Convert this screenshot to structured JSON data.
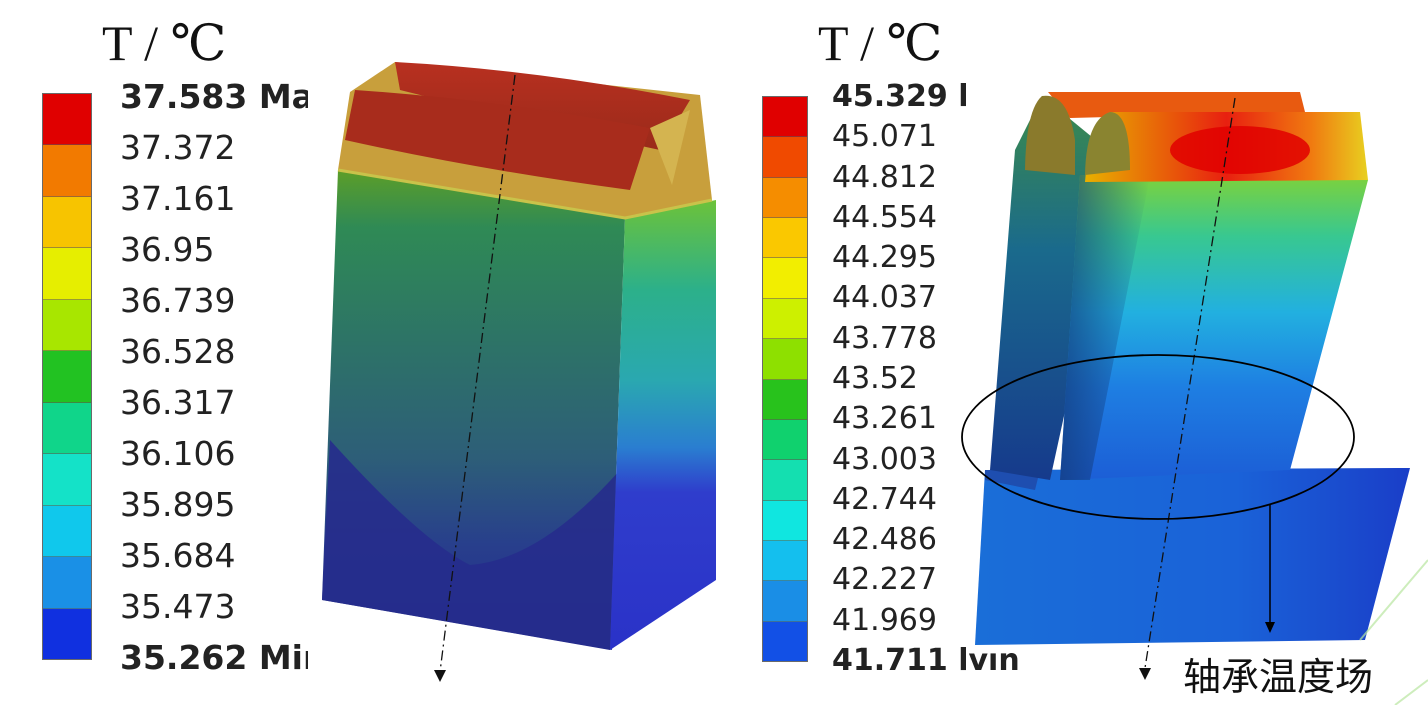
{
  "panels": [
    {
      "unit_label": "T / ℃",
      "legend_labels": [
        "37.583 Ma",
        "37.372",
        "37.161",
        "36.95",
        "36.739",
        "36.528",
        "36.317",
        "36.106",
        "35.895",
        "35.684",
        "35.473",
        "35.262 Mir"
      ],
      "colors": [
        "#e00000",
        "#f27a00",
        "#f7c400",
        "#e6ee00",
        "#a8e600",
        "#22c222",
        "#10d58a",
        "#14e2c8",
        "#10c8ec",
        "#1a90e6",
        "#1030e0"
      ]
    },
    {
      "unit_label": "T / ℃",
      "legend_labels": [
        "45.329 l",
        "45.071",
        "44.812",
        "44.554",
        "44.295",
        "44.037",
        "43.778",
        "43.52",
        "43.261",
        "43.003",
        "42.744",
        "42.486",
        "42.227",
        "41.969",
        "41.711 lvın"
      ],
      "colors": [
        "#e00000",
        "#f04a00",
        "#f58d00",
        "#fac800",
        "#f2ee00",
        "#cdf000",
        "#8ee000",
        "#28c21c",
        "#10d16e",
        "#14dfb0",
        "#10e6e0",
        "#14bfee",
        "#1a8ee6",
        "#1250e6"
      ]
    }
  ],
  "caption": "轴承温度场",
  "icons": {
    "arrow": "arrow-down-icon"
  }
}
